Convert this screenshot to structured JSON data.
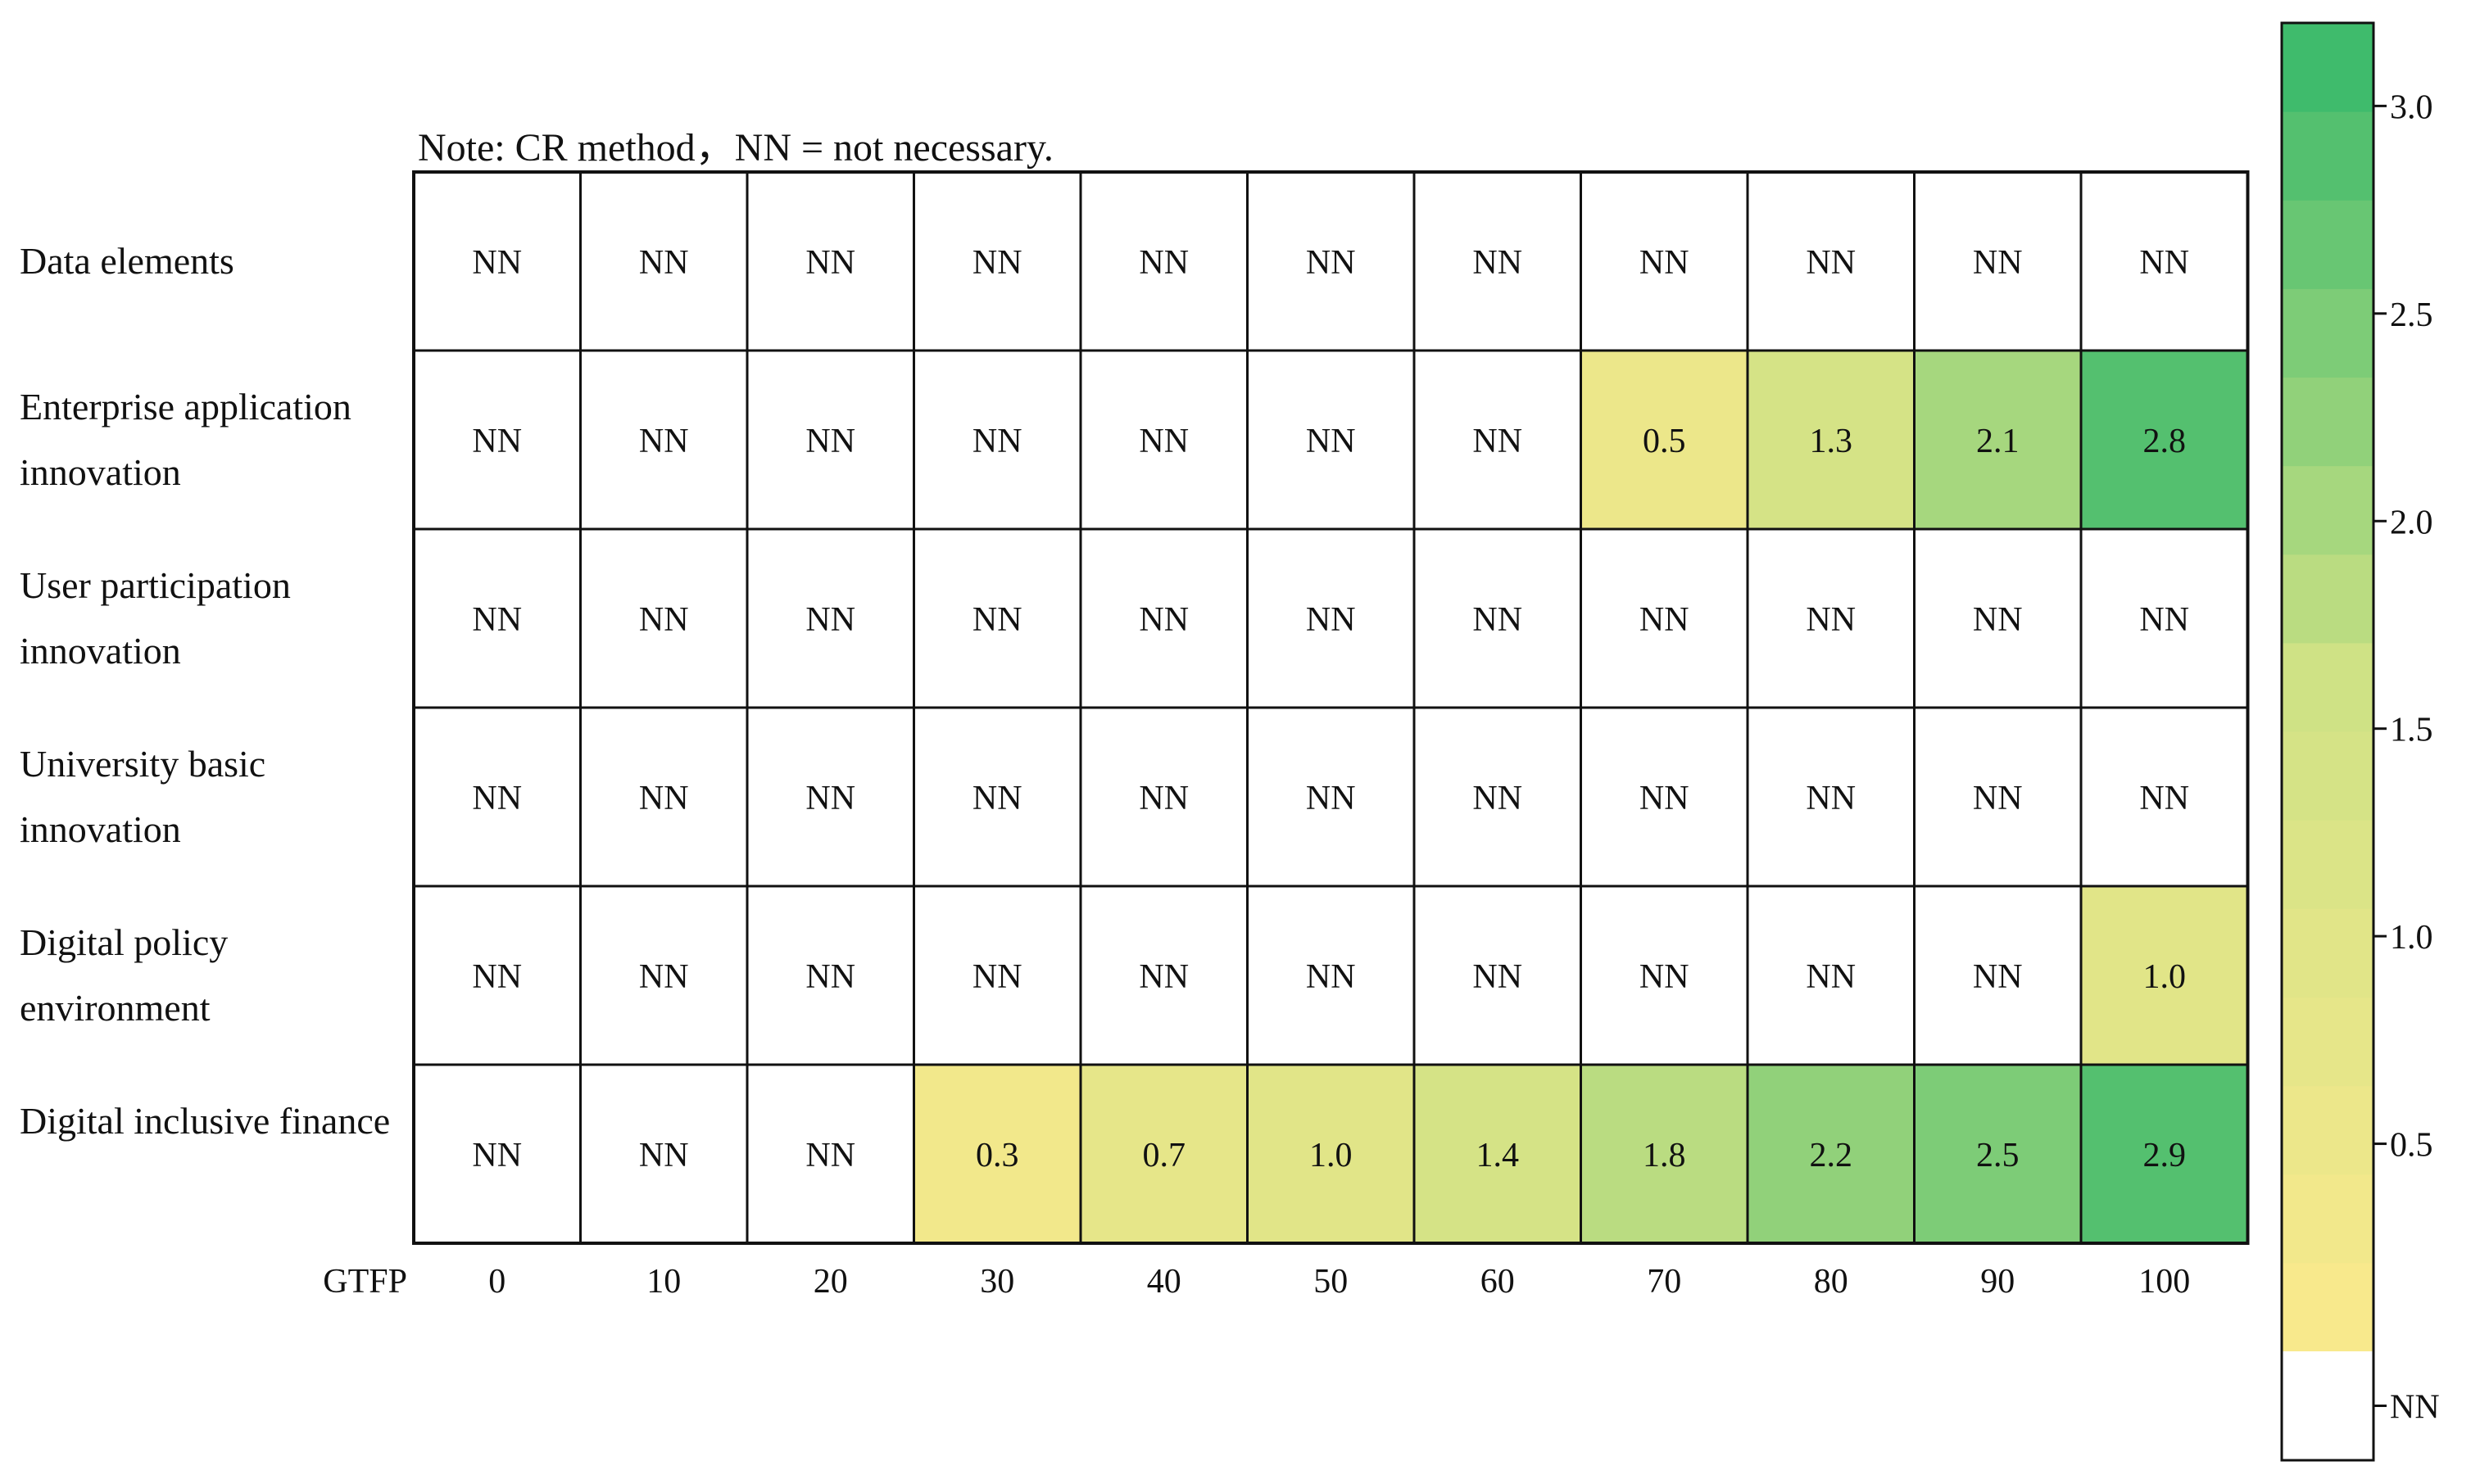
{
  "note": "Note: CR method，NN = not necessary.",
  "chart_data": {
    "type": "heatmap",
    "x_axis_label": "GTFP",
    "x_ticks": [
      "0",
      "10",
      "20",
      "30",
      "40",
      "50",
      "60",
      "70",
      "80",
      "90",
      "100"
    ],
    "rows": [
      "Data elements",
      "Enterprise application innovation",
      "User participation innovation",
      "University basic innovation",
      "Digital policy environment",
      "Digital inclusive finance"
    ],
    "cells": [
      [
        "NN",
        "NN",
        "NN",
        "NN",
        "NN",
        "NN",
        "NN",
        "NN",
        "NN",
        "NN",
        "NN"
      ],
      [
        "NN",
        "NN",
        "NN",
        "NN",
        "NN",
        "NN",
        "NN",
        "0.5",
        "1.3",
        "2.1",
        "2.8"
      ],
      [
        "NN",
        "NN",
        "NN",
        "NN",
        "NN",
        "NN",
        "NN",
        "NN",
        "NN",
        "NN",
        "NN"
      ],
      [
        "NN",
        "NN",
        "NN",
        "NN",
        "NN",
        "NN",
        "NN",
        "NN",
        "NN",
        "NN",
        "NN"
      ],
      [
        "NN",
        "NN",
        "NN",
        "NN",
        "NN",
        "NN",
        "NN",
        "NN",
        "NN",
        "NN",
        "1.0"
      ],
      [
        "NN",
        "NN",
        "NN",
        "0.3",
        "0.7",
        "1.0",
        "1.4",
        "1.8",
        "2.2",
        "2.5",
        "2.9"
      ]
    ],
    "colorbar": {
      "ticks": [
        "3.0",
        "2.5",
        "2.0",
        "1.5",
        "1.0",
        "0.5",
        "NN"
      ],
      "range": [
        0.0,
        3.2
      ],
      "steps": 15,
      "colors": {
        "low": "#fbe98c",
        "mid": "#cfe285",
        "high": "#35b86a",
        "nn": "#ffffff"
      }
    },
    "grid": true,
    "legend": "right"
  }
}
